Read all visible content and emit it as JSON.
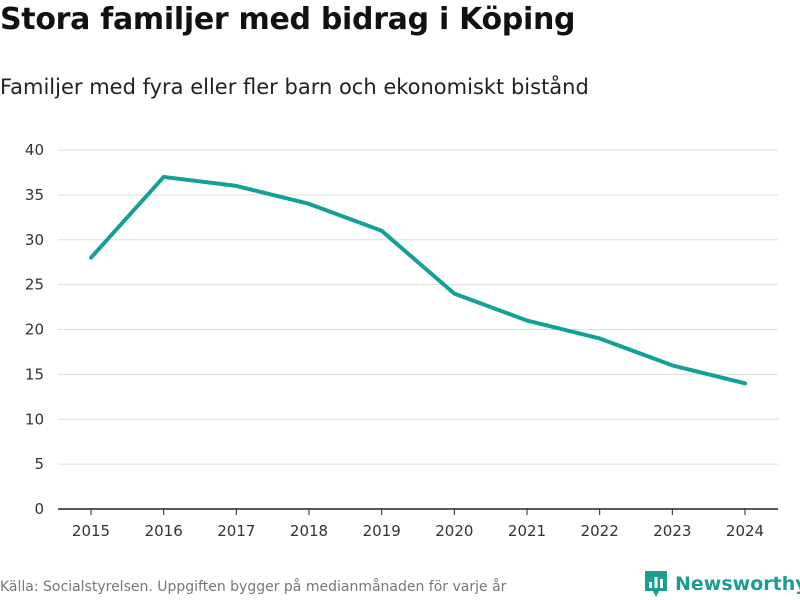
{
  "chart_data": {
    "type": "line",
    "title": "Stora familjer med bidrag i Köping",
    "subtitle": "Familjer med fyra eller fler barn och ekonomiskt bistånd",
    "categories": [
      "2015",
      "2016",
      "2017",
      "2018",
      "2019",
      "2020",
      "2021",
      "2022",
      "2023",
      "2024"
    ],
    "series": [
      {
        "name": "Familjer",
        "values": [
          28,
          37,
          36,
          34,
          31,
          24,
          21,
          19,
          16,
          14
        ]
      }
    ],
    "yticks": [
      "0",
      "5",
      "10",
      "15",
      "20",
      "25",
      "30",
      "35",
      "40"
    ],
    "ylim": [
      0,
      40
    ],
    "xlabel": "",
    "ylabel": "",
    "grid": true,
    "line_color": "#13a197"
  },
  "footer": {
    "source": "Källa: Socialstyrelsen. Uppgiften bygger på medianmånaden för varje år",
    "brand": "Newsworthy",
    "brand_color": "#1a9e8f"
  }
}
